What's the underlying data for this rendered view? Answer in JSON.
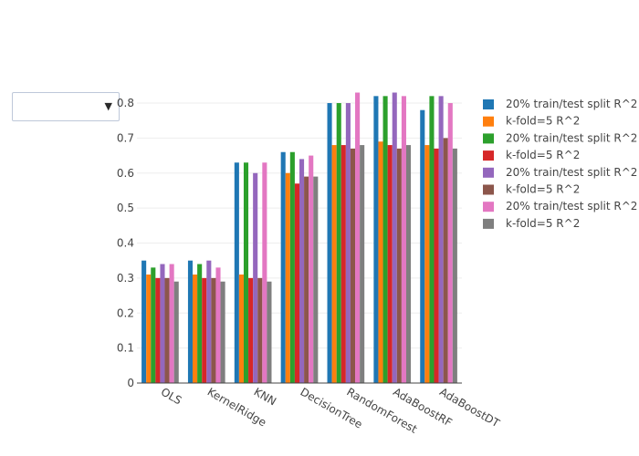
{
  "dropdown": {
    "selected": ""
  },
  "chart_data": {
    "type": "bar",
    "title": "",
    "xlabel": "",
    "ylabel": "",
    "ylim": [
      0,
      0.86
    ],
    "yticks": [
      0,
      0.1,
      0.2,
      0.3,
      0.4,
      0.5,
      0.6,
      0.7,
      0.8
    ],
    "grid": true,
    "legend_position": "right",
    "categories": [
      "OLS",
      "KernelRidge",
      "KNN",
      "DecisionTree",
      "RandomForest",
      "AdaBoostRF",
      "AdaBoostDT"
    ],
    "series": [
      {
        "name": "20% train/test split R^2",
        "color": "#1f77b4",
        "values": [
          0.35,
          0.35,
          0.63,
          0.66,
          0.8,
          0.82,
          0.78
        ]
      },
      {
        "name": "k-fold=5 R^2",
        "color": "#ff7f0e",
        "values": [
          0.31,
          0.31,
          0.31,
          0.6,
          0.68,
          0.69,
          0.68
        ]
      },
      {
        "name": "20% train/test split R^2",
        "color": "#2ca02c",
        "values": [
          0.33,
          0.34,
          0.63,
          0.66,
          0.8,
          0.82,
          0.82
        ]
      },
      {
        "name": "k-fold=5 R^2",
        "color": "#d62728",
        "values": [
          0.3,
          0.3,
          0.3,
          0.57,
          0.68,
          0.68,
          0.67
        ]
      },
      {
        "name": "20% train/test split R^2",
        "color": "#9467bd",
        "values": [
          0.34,
          0.35,
          0.6,
          0.64,
          0.8,
          0.83,
          0.82
        ]
      },
      {
        "name": "k-fold=5 R^2",
        "color": "#8c564b",
        "values": [
          0.3,
          0.3,
          0.3,
          0.59,
          0.67,
          0.67,
          0.7
        ]
      },
      {
        "name": "20% train/test split R^2",
        "color": "#e377c2",
        "values": [
          0.34,
          0.33,
          0.63,
          0.65,
          0.83,
          0.82,
          0.8
        ]
      },
      {
        "name": "k-fold=5 R^2",
        "color": "#7f7f7f",
        "values": [
          0.29,
          0.29,
          0.29,
          0.59,
          0.68,
          0.68,
          0.67
        ]
      }
    ]
  }
}
